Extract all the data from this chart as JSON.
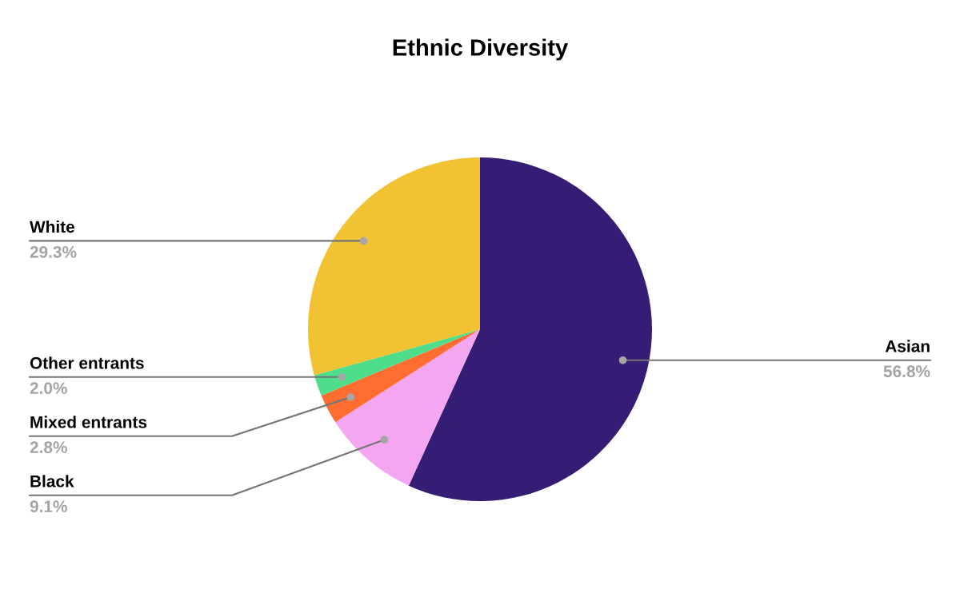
{
  "chart_data": {
    "type": "pie",
    "title": "Ethnic Diversity",
    "categories": [
      "Asian",
      "Black",
      "Mixed entrants",
      "Other entrants",
      "White"
    ],
    "values": [
      56.8,
      9.1,
      2.8,
      2.0,
      29.3
    ],
    "colors": [
      "#351c75",
      "#f4a6f0",
      "#ff6d31",
      "#4edd8a",
      "#f1c232"
    ],
    "value_labels": [
      "56.8%",
      "9.1%",
      "2.8%",
      "2.0%",
      "29.3%"
    ]
  }
}
